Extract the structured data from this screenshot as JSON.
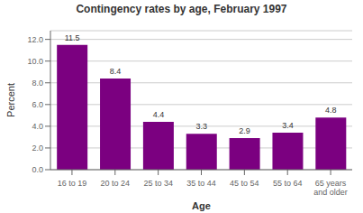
{
  "chart_data": {
    "type": "bar",
    "title": "Contingency rates by age, February 1997",
    "categories": [
      "16 to 19",
      "20 to 24",
      "25 to 34",
      "35 to 44",
      "45 to 54",
      "55 to 64",
      "65 years\nand older"
    ],
    "values": [
      11.5,
      8.4,
      4.4,
      3.3,
      2.9,
      3.4,
      4.8
    ],
    "color": "#7b0080",
    "xlabel": "Age",
    "ylabel": "Percent",
    "ylim": [
      0,
      12.8
    ],
    "yticks": [
      {
        "value": 0,
        "label": "0.0"
      },
      {
        "value": 2,
        "label": "2.0"
      },
      {
        "value": 4,
        "label": "4.0"
      },
      {
        "value": 6,
        "label": "6.0"
      },
      {
        "value": 8,
        "label": "8.0"
      },
      {
        "value": 10,
        "label": "10.0"
      },
      {
        "value": 12,
        "label": "12.0"
      }
    ],
    "grid": true,
    "data_labels": true
  }
}
